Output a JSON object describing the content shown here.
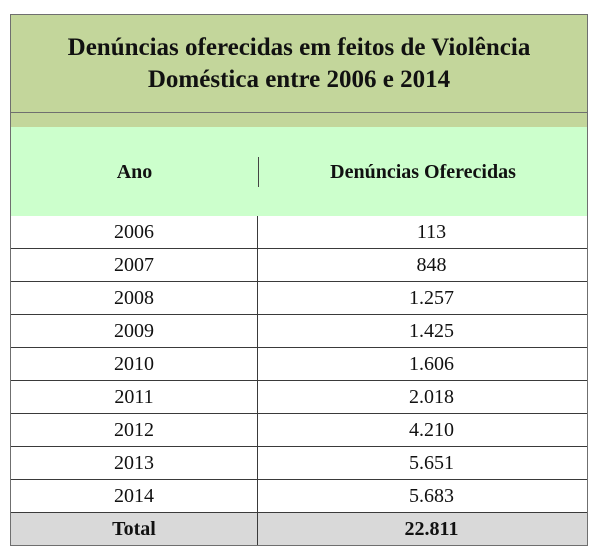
{
  "title": {
    "line1": "Denúncias oferecidas em feitos de Violência",
    "line2": "Doméstica entre 2006 e 2014"
  },
  "headers": {
    "year": "Ano",
    "value": "Denúncias Oferecidas"
  },
  "rows": [
    {
      "year": "2006",
      "value": "113"
    },
    {
      "year": "2007",
      "value": "848"
    },
    {
      "year": "2008",
      "value": "1.257"
    },
    {
      "year": "2009",
      "value": "1.425"
    },
    {
      "year": "2010",
      "value": "1.606"
    },
    {
      "year": "2011",
      "value": "2.018"
    },
    {
      "year": "2012",
      "value": "4.210"
    },
    {
      "year": "2013",
      "value": "5.651"
    },
    {
      "year": "2014",
      "value": "5.683"
    }
  ],
  "total": {
    "label": "Total",
    "value": "22.811"
  },
  "colors": {
    "title_band": "#c3d69b",
    "header_band": "#ccffcc",
    "total_row": "#d9d9d9"
  }
}
